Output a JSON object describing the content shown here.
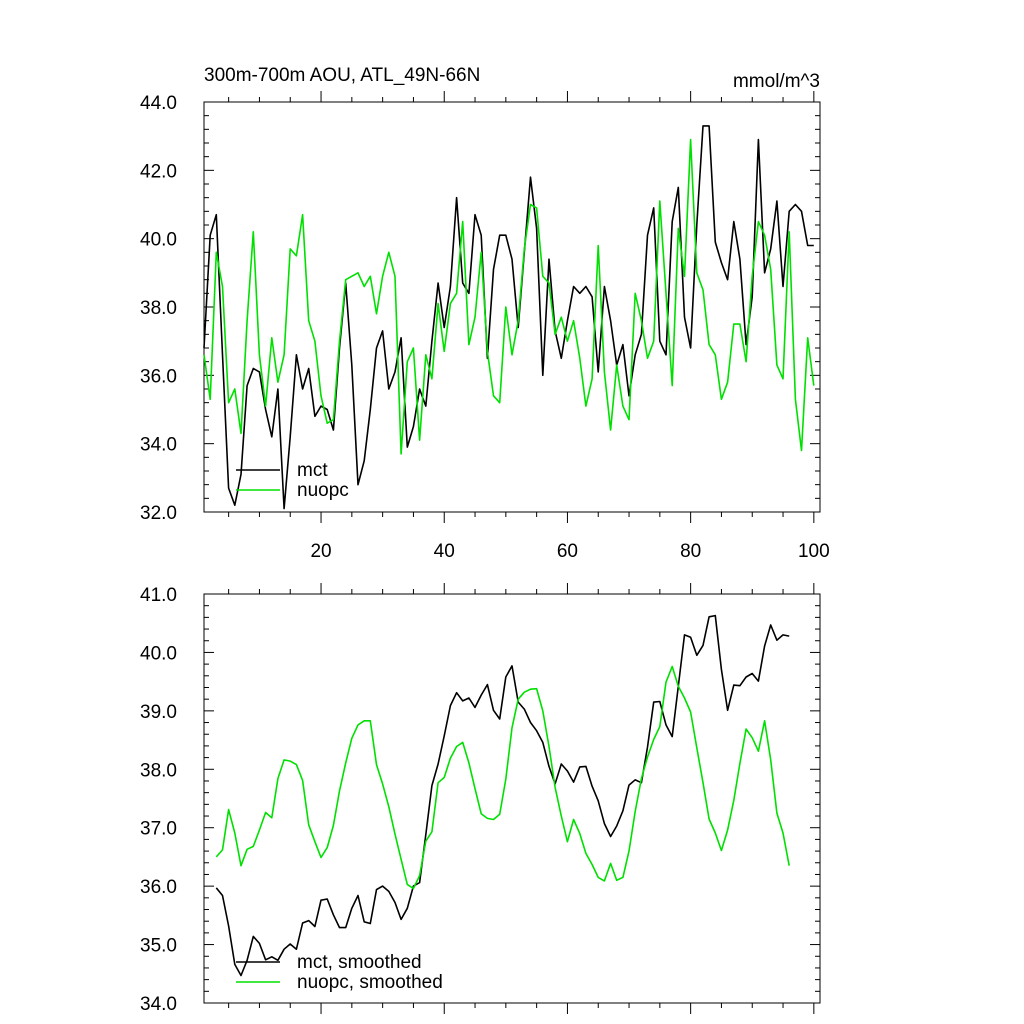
{
  "chart_data": [
    {
      "type": "line",
      "title": "300m-700m AOU, ATL_49N-66N",
      "units": "mmol/m^3",
      "ylim": [
        32.0,
        44.0
      ],
      "xlim": [
        1,
        101
      ],
      "yticks": [
        "32.0",
        "34.0",
        "36.0",
        "38.0",
        "40.0",
        "42.0",
        "44.0"
      ],
      "xticks": [
        "20",
        "40",
        "60",
        "80",
        "100"
      ],
      "legend_position": "bottom-left",
      "series": [
        {
          "name": "mct",
          "color": "#000000",
          "values": [
            36.8,
            40.1,
            40.7,
            36.6,
            32.7,
            32.2,
            33.1,
            35.7,
            36.2,
            36.1,
            35.0,
            34.2,
            35.6,
            32.1,
            34.2,
            36.6,
            35.6,
            36.2,
            34.8,
            35.1,
            35.0,
            34.4,
            36.8,
            38.7,
            36.3,
            32.8,
            33.5,
            35.0,
            36.8,
            37.3,
            35.6,
            36.1,
            37.1,
            33.9,
            34.5,
            35.6,
            35.1,
            37.0,
            38.7,
            37.4,
            38.6,
            41.2,
            38.7,
            38.4,
            40.7,
            40.1,
            36.5,
            39.1,
            40.1,
            40.1,
            39.4,
            37.4,
            39.6,
            41.8,
            40.3,
            36.0,
            39.4,
            37.3,
            36.5,
            37.6,
            38.6,
            38.4,
            38.6,
            38.3,
            36.1,
            38.6,
            37.6,
            36.3,
            36.9,
            35.4,
            36.6,
            37.2,
            40.1,
            40.9,
            37.0,
            36.6,
            40.5,
            41.5,
            37.7,
            36.8,
            40.4,
            43.3,
            43.3,
            39.9,
            39.3,
            38.8,
            40.5,
            39.4,
            36.9,
            38.3,
            42.9,
            39.0,
            39.7,
            41.1,
            38.6,
            40.8,
            41.0,
            40.8,
            39.8,
            39.8
          ]
        },
        {
          "name": "nuopc",
          "color": "#00e000",
          "values": [
            36.6,
            35.3,
            39.6,
            38.6,
            35.2,
            35.6,
            34.3,
            37.6,
            40.2,
            36.6,
            35.1,
            37.1,
            35.8,
            36.6,
            39.7,
            39.5,
            40.7,
            37.6,
            37.0,
            35.4,
            34.6,
            34.7,
            37.0,
            38.8,
            38.9,
            39.0,
            38.6,
            38.9,
            37.8,
            38.9,
            39.6,
            38.9,
            33.7,
            36.4,
            36.8,
            34.1,
            36.6,
            35.9,
            38.1,
            36.7,
            38.1,
            38.4,
            40.5,
            36.9,
            37.7,
            39.6,
            36.7,
            35.4,
            35.2,
            38.0,
            36.6,
            37.6,
            39.7,
            41.0,
            40.9,
            38.9,
            38.7,
            37.2,
            37.7,
            37.0,
            37.6,
            36.5,
            35.1,
            35.9,
            39.8,
            36.1,
            34.4,
            36.3,
            35.1,
            34.7,
            38.4,
            37.6,
            36.5,
            37.0,
            41.1,
            38.4,
            35.7,
            40.3,
            38.9,
            42.9,
            39.0,
            38.5,
            36.9,
            36.6,
            35.3,
            35.8,
            37.5,
            37.5,
            36.4,
            38.9,
            40.5,
            40.1,
            39.1,
            36.3,
            35.9,
            40.2,
            35.3,
            33.8,
            37.1,
            35.7
          ]
        }
      ]
    },
    {
      "type": "line",
      "ylim": [
        34.0,
        41.0
      ],
      "xlim": [
        1,
        101
      ],
      "yticks": [
        "34.0",
        "35.0",
        "36.0",
        "37.0",
        "38.0",
        "39.0",
        "40.0",
        "41.0"
      ],
      "legend_position": "bottom-left",
      "series": [
        {
          "name": "mct, smoothed",
          "color": "#000000",
          "x_start": 3,
          "values": [
            35.97,
            35.84,
            35.32,
            34.66,
            34.47,
            34.73,
            35.14,
            35.02,
            34.74,
            34.79,
            34.73,
            34.92,
            35.01,
            34.92,
            35.37,
            35.41,
            35.31,
            35.76,
            35.78,
            35.51,
            35.29,
            35.29,
            35.62,
            35.84,
            35.39,
            35.36,
            35.94,
            36.0,
            35.91,
            35.72,
            35.43,
            35.62,
            36.0,
            36.06,
            36.88,
            37.72,
            38.09,
            38.57,
            39.09,
            39.31,
            39.17,
            39.22,
            39.06,
            39.27,
            39.45,
            39.01,
            38.86,
            39.58,
            39.77,
            39.15,
            39.03,
            38.8,
            38.66,
            38.46,
            38.05,
            37.75,
            38.09,
            37.97,
            37.78,
            38.04,
            38.05,
            37.71,
            37.46,
            37.07,
            36.85,
            37.03,
            37.29,
            37.73,
            37.82,
            37.77,
            38.38,
            39.15,
            39.16,
            38.76,
            38.56,
            39.42,
            40.3,
            40.26,
            39.95,
            40.12,
            40.61,
            40.63,
            39.71,
            39.01,
            39.44,
            39.43,
            39.58,
            39.64,
            39.51,
            40.11,
            40.47,
            40.21,
            40.3,
            40.28
          ]
        },
        {
          "name": "nuopc, smoothed",
          "color": "#00e000",
          "x_start": 3,
          "values": [
            36.5,
            36.62,
            37.31,
            36.91,
            36.35,
            36.63,
            36.68,
            36.96,
            37.26,
            37.17,
            37.84,
            38.16,
            38.14,
            38.08,
            37.81,
            37.05,
            36.76,
            36.49,
            36.66,
            37.04,
            37.63,
            38.11,
            38.53,
            38.76,
            38.83,
            38.83,
            38.08,
            37.75,
            37.36,
            36.89,
            36.46,
            36.03,
            35.96,
            36.18,
            36.77,
            36.93,
            37.77,
            37.86,
            38.19,
            38.39,
            38.46,
            38.11,
            37.67,
            37.24,
            37.16,
            37.14,
            37.23,
            37.83,
            38.71,
            39.2,
            39.32,
            39.37,
            39.38,
            39.0,
            38.39,
            37.69,
            37.2,
            36.76,
            37.14,
            36.9,
            36.56,
            36.37,
            36.15,
            36.09,
            36.39,
            36.1,
            36.15,
            36.6,
            37.28,
            37.84,
            38.21,
            38.51,
            38.73,
            39.49,
            39.76,
            39.42,
            39.22,
            38.98,
            38.37,
            37.77,
            37.15,
            36.91,
            36.61,
            36.96,
            37.47,
            38.1,
            38.69,
            38.54,
            38.31,
            38.83,
            38.16,
            37.25,
            36.91,
            36.35
          ]
        }
      ]
    }
  ]
}
